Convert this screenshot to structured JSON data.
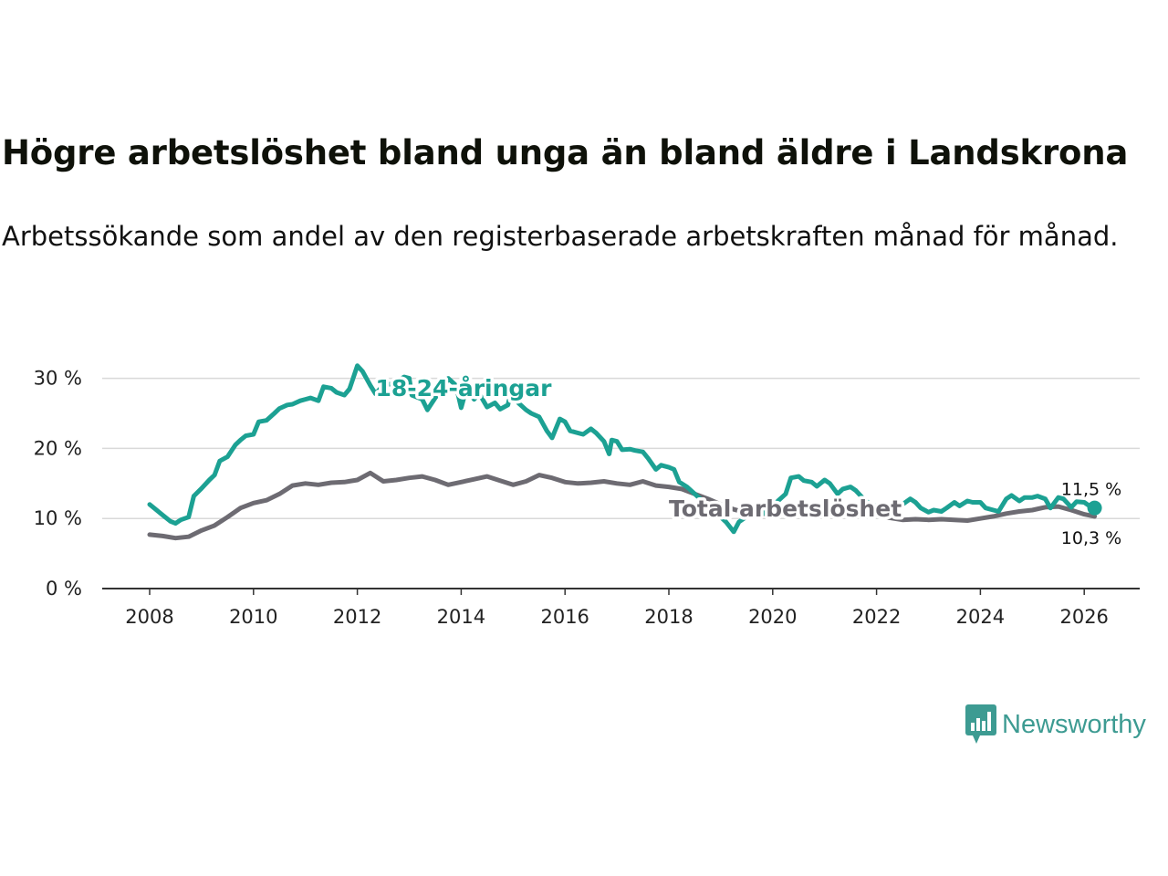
{
  "title": "Högre arbetslöshet bland unga än bland äldre i Landskrona",
  "subtitle": "Arbetssökande som andel av den registerbaserade arbetskraften månad för månad.",
  "brand": {
    "name": "Newsworthy",
    "icon": "newsworthy-logo-icon",
    "color": "#3d9b92"
  },
  "chart_data": {
    "type": "line",
    "title": "Högre arbetslöshet bland unga än bland äldre i Landskrona",
    "xlabel": "",
    "ylabel": "",
    "xlim": [
      2007.9,
      2027.1
    ],
    "ylim": [
      0,
      30
    ],
    "grid": true,
    "y_ticks": [
      {
        "value": 0,
        "label": "0 %"
      },
      {
        "value": 10,
        "label": "10 %"
      },
      {
        "value": 20,
        "label": "20 %"
      },
      {
        "value": 30,
        "label": "30 %"
      }
    ],
    "x_ticks": [
      {
        "value": 2008,
        "label": "2008"
      },
      {
        "value": 2010,
        "label": "2010"
      },
      {
        "value": 2012,
        "label": "2012"
      },
      {
        "value": 2014,
        "label": "2014"
      },
      {
        "value": 2016,
        "label": "2016"
      },
      {
        "value": 2018,
        "label": "2018"
      },
      {
        "value": 2020,
        "label": "2020"
      },
      {
        "value": 2022,
        "label": "2022"
      },
      {
        "value": 2024,
        "label": "2024"
      },
      {
        "value": 2026,
        "label": "2026"
      }
    ],
    "series": [
      {
        "name": "Total arbetslöshet",
        "color": "#6d6b72",
        "label": {
          "text": "Total arbetslöshet",
          "x": 2018.0,
          "y": 10.3
        },
        "end_label": "10,3 %",
        "points": [
          [
            2008.0,
            7.7
          ],
          [
            2008.25,
            7.5
          ],
          [
            2008.5,
            7.2
          ],
          [
            2008.75,
            7.4
          ],
          [
            2009.0,
            8.3
          ],
          [
            2009.25,
            9.0
          ],
          [
            2009.5,
            10.2
          ],
          [
            2009.75,
            11.5
          ],
          [
            2010.0,
            12.2
          ],
          [
            2010.25,
            12.6
          ],
          [
            2010.5,
            13.5
          ],
          [
            2010.75,
            14.7
          ],
          [
            2011.0,
            15.0
          ],
          [
            2011.25,
            14.8
          ],
          [
            2011.5,
            15.1
          ],
          [
            2011.75,
            15.2
          ],
          [
            2012.0,
            15.5
          ],
          [
            2012.25,
            16.5
          ],
          [
            2012.5,
            15.3
          ],
          [
            2012.75,
            15.5
          ],
          [
            2013.0,
            15.8
          ],
          [
            2013.25,
            16.0
          ],
          [
            2013.5,
            15.5
          ],
          [
            2013.75,
            14.8
          ],
          [
            2014.0,
            15.2
          ],
          [
            2014.25,
            15.6
          ],
          [
            2014.5,
            16.0
          ],
          [
            2014.75,
            15.4
          ],
          [
            2015.0,
            14.8
          ],
          [
            2015.25,
            15.3
          ],
          [
            2015.5,
            16.2
          ],
          [
            2015.75,
            15.8
          ],
          [
            2016.0,
            15.2
          ],
          [
            2016.25,
            15.0
          ],
          [
            2016.5,
            15.1
          ],
          [
            2016.75,
            15.3
          ],
          [
            2017.0,
            15.0
          ],
          [
            2017.25,
            14.8
          ],
          [
            2017.5,
            15.3
          ],
          [
            2017.75,
            14.7
          ],
          [
            2018.0,
            14.5
          ],
          [
            2018.25,
            14.2
          ],
          [
            2018.5,
            13.5
          ],
          [
            2018.75,
            12.8
          ],
          [
            2019.0,
            12.0
          ],
          [
            2019.25,
            11.3
          ],
          [
            2019.5,
            10.8
          ],
          [
            2019.75,
            10.6
          ],
          [
            2020.0,
            10.8
          ],
          [
            2020.25,
            11.5
          ],
          [
            2020.5,
            12.0
          ],
          [
            2020.75,
            11.8
          ],
          [
            2021.0,
            11.6
          ],
          [
            2021.25,
            11.3
          ],
          [
            2021.5,
            11.0
          ],
          [
            2021.75,
            10.8
          ],
          [
            2022.0,
            10.5
          ],
          [
            2022.25,
            10.1
          ],
          [
            2022.5,
            9.8
          ],
          [
            2022.75,
            9.9
          ],
          [
            2023.0,
            9.8
          ],
          [
            2023.25,
            9.9
          ],
          [
            2023.5,
            9.8
          ],
          [
            2023.75,
            9.7
          ],
          [
            2024.0,
            10.0
          ],
          [
            2024.25,
            10.3
          ],
          [
            2024.5,
            10.7
          ],
          [
            2024.75,
            11.0
          ],
          [
            2025.0,
            11.2
          ],
          [
            2025.25,
            11.6
          ],
          [
            2025.5,
            11.7
          ],
          [
            2025.75,
            11.2
          ],
          [
            2026.0,
            10.6
          ],
          [
            2026.2,
            10.3
          ]
        ]
      },
      {
        "name": "18-24-åringar",
        "color": "#1ca193",
        "label": {
          "text": "18-24-åringar",
          "x": 2012.35,
          "y": 27.5
        },
        "end_label": "11,5 %",
        "points": [
          [
            2008.0,
            12.0
          ],
          [
            2008.1,
            11.4
          ],
          [
            2008.25,
            10.5
          ],
          [
            2008.4,
            9.6
          ],
          [
            2008.5,
            9.3
          ],
          [
            2008.6,
            9.8
          ],
          [
            2008.75,
            10.2
          ],
          [
            2008.85,
            13.2
          ],
          [
            2009.0,
            14.3
          ],
          [
            2009.15,
            15.5
          ],
          [
            2009.25,
            16.2
          ],
          [
            2009.35,
            18.2
          ],
          [
            2009.5,
            18.8
          ],
          [
            2009.65,
            20.5
          ],
          [
            2009.75,
            21.2
          ],
          [
            2009.85,
            21.8
          ],
          [
            2010.0,
            22.0
          ],
          [
            2010.1,
            23.8
          ],
          [
            2010.25,
            24.0
          ],
          [
            2010.4,
            25.0
          ],
          [
            2010.5,
            25.7
          ],
          [
            2010.65,
            26.2
          ],
          [
            2010.75,
            26.3
          ],
          [
            2010.9,
            26.8
          ],
          [
            2011.0,
            27.0
          ],
          [
            2011.1,
            27.2
          ],
          [
            2011.25,
            26.8
          ],
          [
            2011.35,
            28.8
          ],
          [
            2011.5,
            28.6
          ],
          [
            2011.6,
            28.0
          ],
          [
            2011.75,
            27.6
          ],
          [
            2011.85,
            28.5
          ],
          [
            2012.0,
            31.8
          ],
          [
            2012.1,
            31.0
          ],
          [
            2012.25,
            29.0
          ],
          [
            2012.35,
            27.8
          ],
          [
            2012.5,
            29.0
          ],
          [
            2012.65,
            29.2
          ],
          [
            2012.75,
            29.5
          ],
          [
            2012.9,
            30.2
          ],
          [
            2013.0,
            30.0
          ],
          [
            2013.05,
            27.6
          ],
          [
            2013.25,
            27.0
          ],
          [
            2013.35,
            25.5
          ],
          [
            2013.5,
            27.2
          ],
          [
            2013.65,
            28.6
          ],
          [
            2013.75,
            30.0
          ],
          [
            2013.9,
            29.0
          ],
          [
            2014.0,
            25.8
          ],
          [
            2014.1,
            28.5
          ],
          [
            2014.25,
            27.0
          ],
          [
            2014.35,
            27.8
          ],
          [
            2014.5,
            25.9
          ],
          [
            2014.65,
            26.5
          ],
          [
            2014.75,
            25.6
          ],
          [
            2014.9,
            26.2
          ],
          [
            2015.0,
            29.3
          ],
          [
            2015.1,
            26.5
          ],
          [
            2015.25,
            25.5
          ],
          [
            2015.35,
            25.0
          ],
          [
            2015.5,
            24.5
          ],
          [
            2015.65,
            22.5
          ],
          [
            2015.75,
            21.5
          ],
          [
            2015.9,
            24.2
          ],
          [
            2016.0,
            23.8
          ],
          [
            2016.1,
            22.5
          ],
          [
            2016.25,
            22.2
          ],
          [
            2016.35,
            22.0
          ],
          [
            2016.5,
            22.8
          ],
          [
            2016.6,
            22.2
          ],
          [
            2016.75,
            21.0
          ],
          [
            2016.85,
            19.2
          ],
          [
            2016.9,
            21.2
          ],
          [
            2017.0,
            21.0
          ],
          [
            2017.1,
            19.8
          ],
          [
            2017.25,
            19.9
          ],
          [
            2017.35,
            19.7
          ],
          [
            2017.5,
            19.5
          ],
          [
            2017.6,
            18.6
          ],
          [
            2017.75,
            17.0
          ],
          [
            2017.85,
            17.6
          ],
          [
            2018.0,
            17.3
          ],
          [
            2018.1,
            17.0
          ],
          [
            2018.2,
            15.2
          ],
          [
            2018.35,
            14.5
          ],
          [
            2018.5,
            13.5
          ],
          [
            2018.65,
            12.5
          ],
          [
            2018.75,
            11.5
          ],
          [
            2018.9,
            11.0
          ],
          [
            2019.0,
            10.2
          ],
          [
            2019.1,
            9.5
          ],
          [
            2019.25,
            8.1
          ],
          [
            2019.35,
            9.5
          ],
          [
            2019.5,
            10.3
          ],
          [
            2019.65,
            10.7
          ],
          [
            2019.75,
            11.2
          ],
          [
            2019.9,
            10.5
          ],
          [
            2020.0,
            11.5
          ],
          [
            2020.1,
            12.5
          ],
          [
            2020.25,
            13.5
          ],
          [
            2020.35,
            15.8
          ],
          [
            2020.5,
            16.0
          ],
          [
            2020.6,
            15.4
          ],
          [
            2020.75,
            15.2
          ],
          [
            2020.85,
            14.6
          ],
          [
            2021.0,
            15.5
          ],
          [
            2021.1,
            15.0
          ],
          [
            2021.25,
            13.5
          ],
          [
            2021.35,
            14.2
          ],
          [
            2021.5,
            14.5
          ],
          [
            2021.6,
            14.0
          ],
          [
            2021.75,
            12.8
          ],
          [
            2021.85,
            12.2
          ],
          [
            2022.0,
            11.7
          ],
          [
            2022.1,
            11.5
          ],
          [
            2022.25,
            11.5
          ],
          [
            2022.35,
            12.0
          ],
          [
            2022.5,
            12.0
          ],
          [
            2022.65,
            12.8
          ],
          [
            2022.75,
            12.3
          ],
          [
            2022.85,
            11.5
          ],
          [
            2023.0,
            10.9
          ],
          [
            2023.1,
            11.2
          ],
          [
            2023.25,
            11.0
          ],
          [
            2023.35,
            11.5
          ],
          [
            2023.5,
            12.3
          ],
          [
            2023.6,
            11.8
          ],
          [
            2023.75,
            12.5
          ],
          [
            2023.85,
            12.3
          ],
          [
            2024.0,
            12.3
          ],
          [
            2024.1,
            11.5
          ],
          [
            2024.25,
            11.2
          ],
          [
            2024.35,
            11.0
          ],
          [
            2024.5,
            12.8
          ],
          [
            2024.6,
            13.3
          ],
          [
            2024.75,
            12.5
          ],
          [
            2024.85,
            13.0
          ],
          [
            2025.0,
            13.0
          ],
          [
            2025.1,
            13.2
          ],
          [
            2025.25,
            12.8
          ],
          [
            2025.35,
            11.5
          ],
          [
            2025.5,
            13.0
          ],
          [
            2025.6,
            12.8
          ],
          [
            2025.75,
            11.6
          ],
          [
            2025.85,
            12.4
          ],
          [
            2026.0,
            12.3
          ],
          [
            2026.1,
            11.8
          ],
          [
            2026.2,
            11.5
          ]
        ]
      }
    ]
  }
}
